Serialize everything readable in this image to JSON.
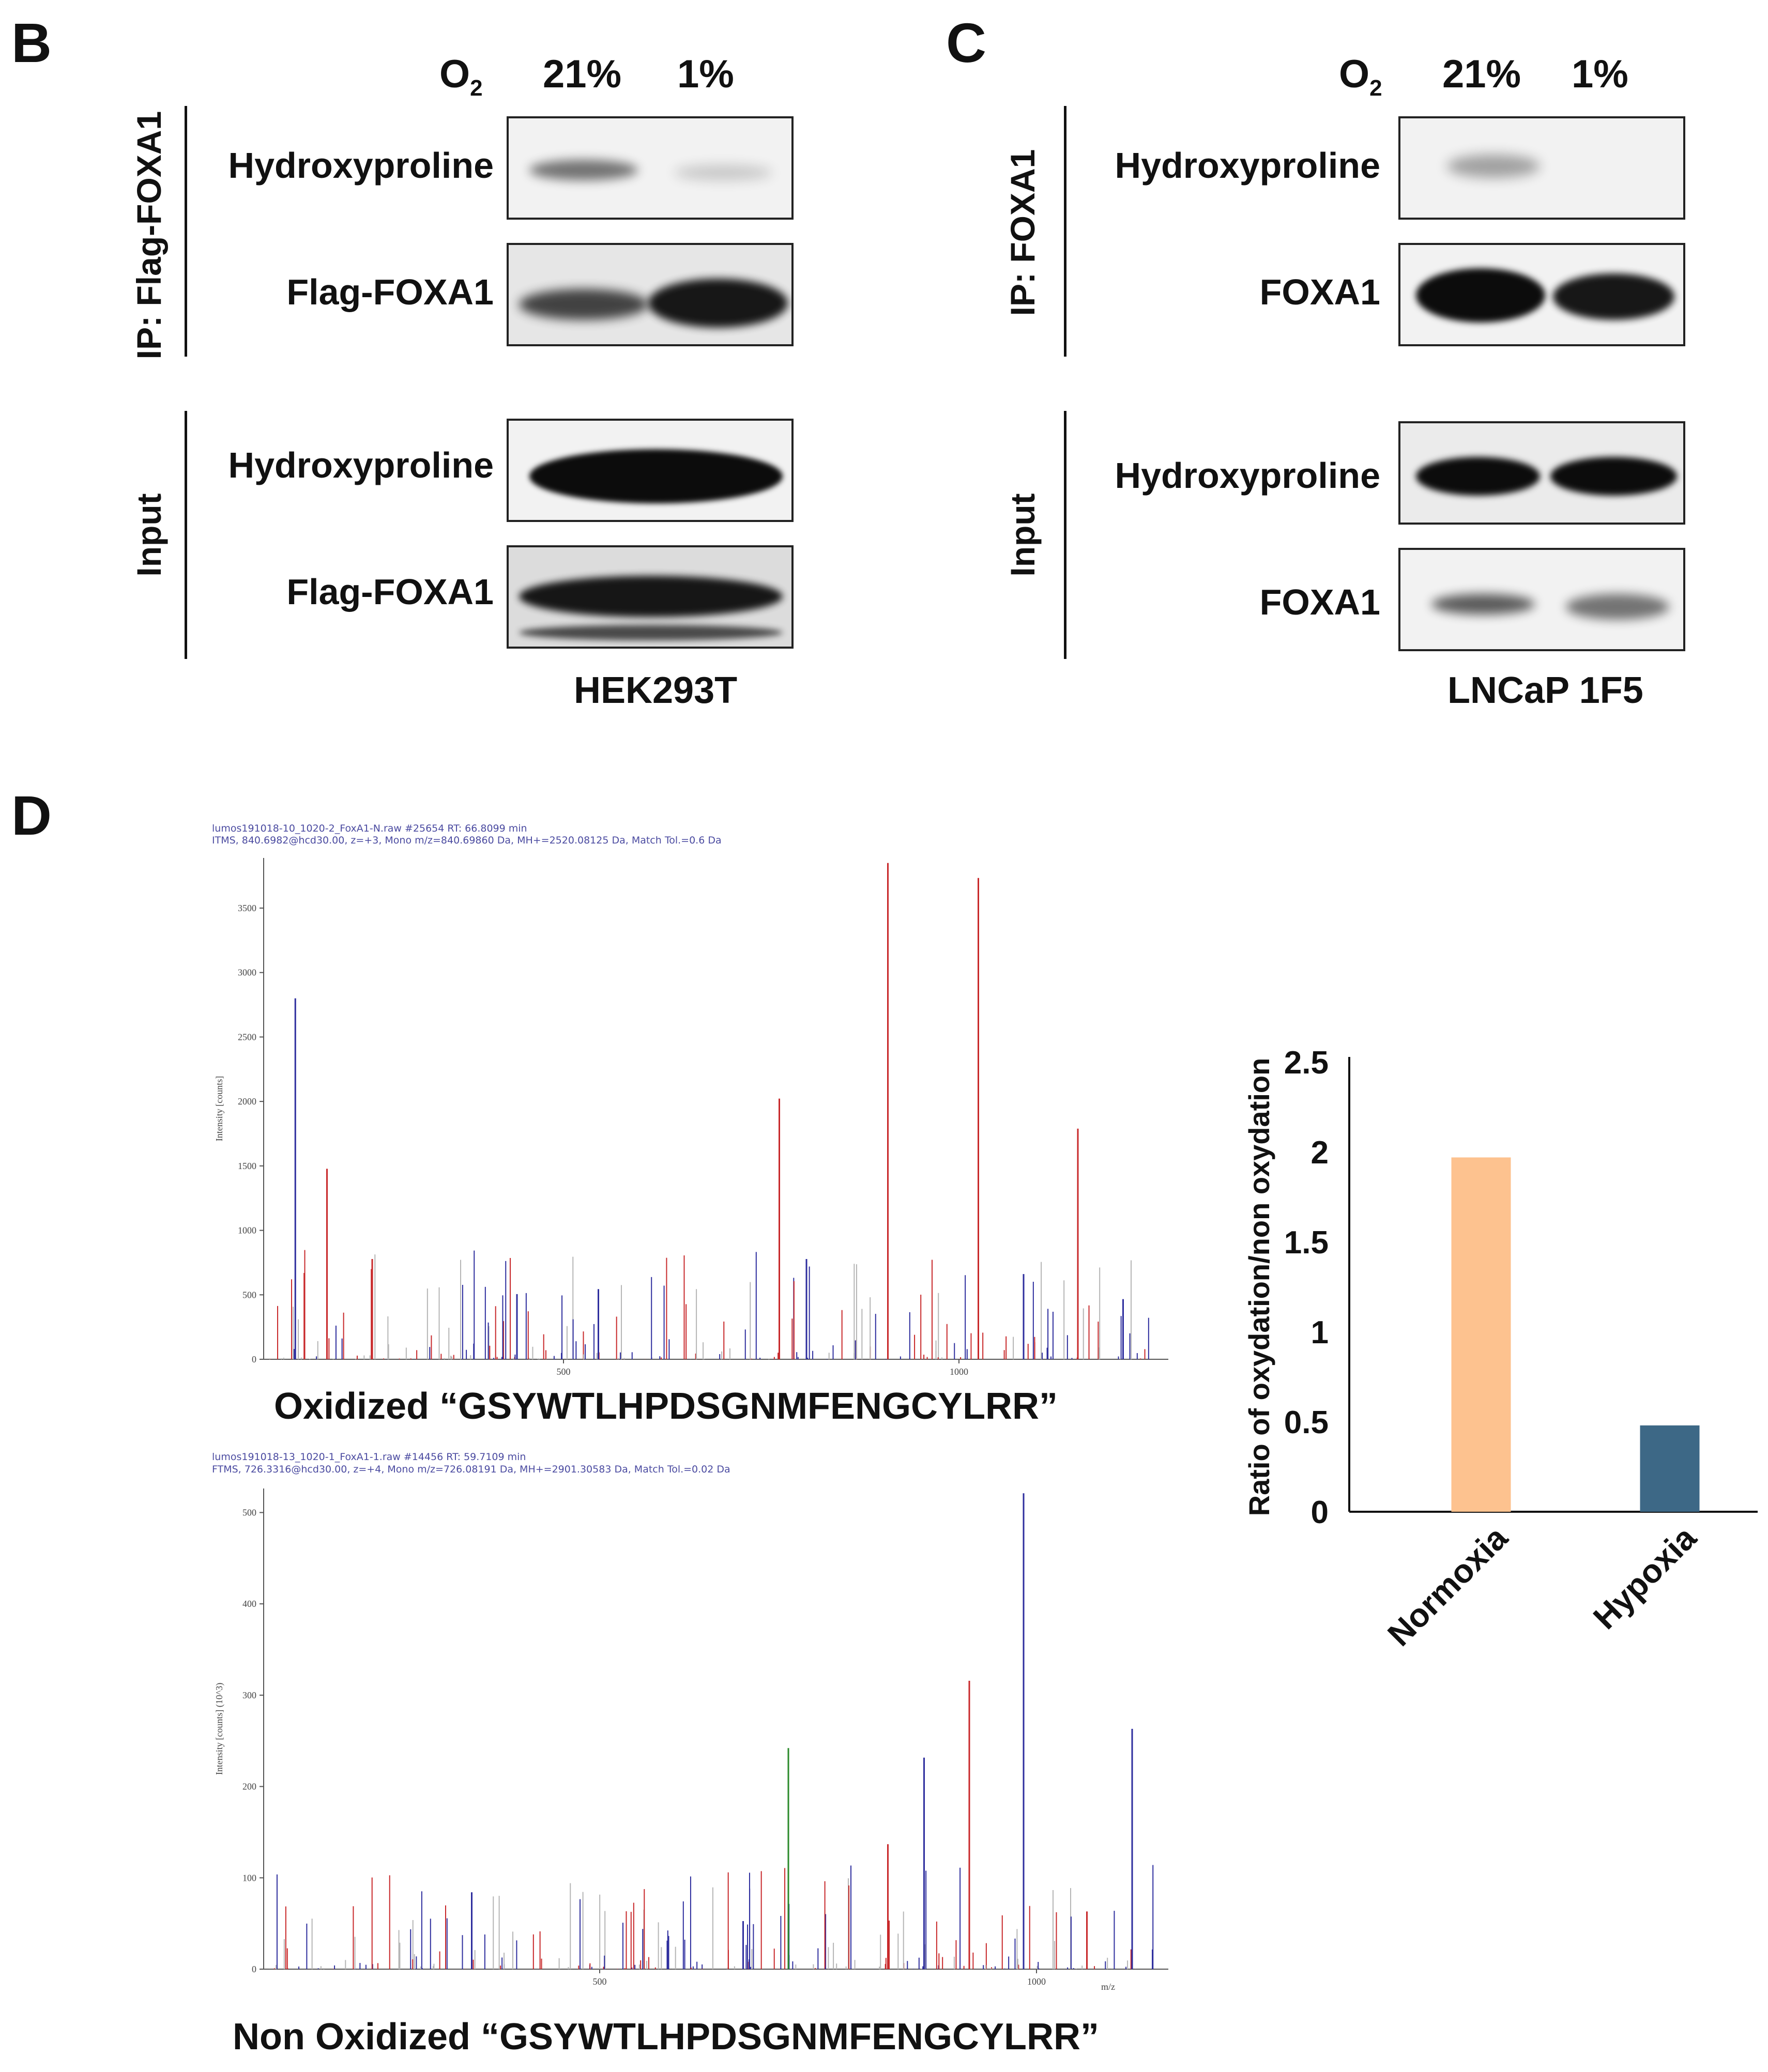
{
  "panels": {
    "B": {
      "letter": "B",
      "o2_label": "O2",
      "conditions": [
        "21%",
        "1%"
      ],
      "ip_group": "IP: Flag-FOXA1",
      "input_group": "Input",
      "rows": [
        "Hydroxyproline",
        "Flag-FOXA1",
        "Hydroxyproline",
        "Flag-FOXA1"
      ],
      "cell_line": "HEK293T"
    },
    "C": {
      "letter": "C",
      "o2_label": "O2",
      "conditions": [
        "21%",
        "1%"
      ],
      "ip_group": "IP: FOXA1",
      "input_group": "Input",
      "rows": [
        "Hydroxyproline",
        "FOXA1",
        "Hydroxyproline",
        "FOXA1"
      ],
      "cell_line": "LNCaP 1F5"
    },
    "D": {
      "letter": "D",
      "spectrum_top": {
        "meta_line1": "lumos191018-10_1020-2_FoxA1-N.raw #25654 RT: 66.8099 min",
        "meta_line2": "ITMS, 840.6982@hcd30.00, z=+3, Mono m/z=840.69860 Da, MH+=2520.08125 Da, Match Tol.=0.6 Da",
        "ylabel": "Intensity [counts]",
        "yticks": [
          "0",
          "500",
          "1000",
          "1500",
          "2000",
          "2500",
          "3000",
          "3500"
        ],
        "xticks": [
          "500",
          "1000"
        ],
        "caption": "Oxidized “GSYWTLHPDSGNMFENGCYLRR”"
      },
      "spectrum_bottom": {
        "meta_line1": "lumos191018-13_1020-1_FoxA1-1.raw #14456 RT: 59.7109 min",
        "meta_line2": "FTMS, 726.3316@hcd30.00, z=+4, Mono m/z=726.08191 Da, MH+=2901.30583 Da, Match Tol.=0.02 Da",
        "ylabel": "Intensity [counts] (10^3)",
        "yticks": [
          "0",
          "100",
          "200",
          "300",
          "400",
          "500"
        ],
        "xticks": [
          "500",
          "1000"
        ],
        "xunit": "m/z",
        "caption": "Non Oxidized “GSYWTLHPDSGNMFENGCYLRR”"
      }
    }
  },
  "colors": {
    "b_ion": "#c8282a",
    "y_ion": "#2e2e9e",
    "unassigned": "#b5b5b5",
    "precursor": "#2a8a2a",
    "normoxia_bar": "#fdc28f",
    "hypoxia_bar": "#3d6886"
  },
  "chart_data": {
    "type": "bar",
    "categories": [
      "Normoxia",
      "Hypoxia"
    ],
    "values": [
      1.97,
      0.48
    ],
    "ylabel": "Ratio of oxydation/non oxydation",
    "yticks": [
      "0",
      "0.5",
      "1",
      "1.5",
      "2",
      "2.5"
    ],
    "ylim": [
      0,
      2.5
    ],
    "grid": false
  }
}
